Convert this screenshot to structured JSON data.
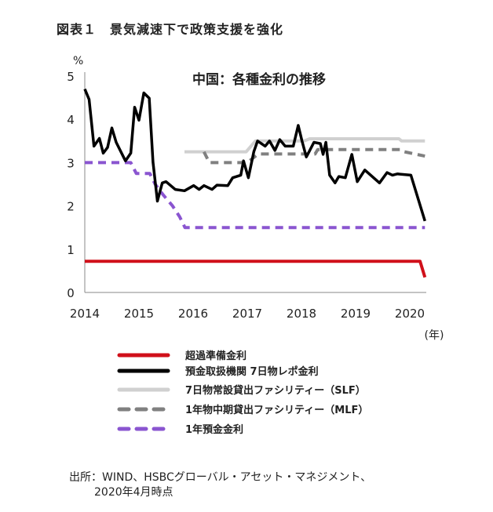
{
  "figure_title": "図表１　景気減速下で政策支援を強化",
  "source_line1": "出所：WIND、HSBCグローバル・アセット・マネジメント、",
  "source_line2": "2020年4月時点",
  "chart_data": {
    "type": "line",
    "title": "中国：各種金利の推移",
    "ylabel": "%",
    "xlabel": "(年)",
    "xlim": [
      2014,
      2020.3
    ],
    "ylim": [
      0,
      5
    ],
    "xticks": [
      "2014",
      "2015",
      "2016",
      "2017",
      "2018",
      "2019",
      "2020"
    ],
    "yticks": [
      "0",
      "1",
      "2",
      "3",
      "4",
      "5"
    ],
    "grid": false,
    "legend_position": "bottom",
    "series": [
      {
        "name": "超過準備金利",
        "color": "#d0101a",
        "style": "solid",
        "x": [
          2014.0,
          2020.19,
          2020.28
        ],
        "y": [
          0.72,
          0.72,
          0.35
        ]
      },
      {
        "name": "預金取扱機関 7日物レポ金利",
        "color": "#000000",
        "style": "solid",
        "x": [
          2014.0,
          2014.08,
          2014.17,
          2014.27,
          2014.34,
          2014.42,
          2014.5,
          2014.58,
          2014.75,
          2014.85,
          2014.92,
          2015.0,
          2015.09,
          2015.19,
          2015.26,
          2015.34,
          2015.43,
          2015.5,
          2015.67,
          2015.84,
          2016.01,
          2016.11,
          2016.2,
          2016.35,
          2016.44,
          2016.64,
          2016.73,
          2016.88,
          2016.93,
          2017.02,
          2017.12,
          2017.19,
          2017.33,
          2017.41,
          2017.51,
          2017.6,
          2017.7,
          2017.85,
          2017.94,
          2018.01,
          2018.09,
          2018.14,
          2018.23,
          2018.35,
          2018.4,
          2018.45,
          2018.52,
          2018.62,
          2018.69,
          2018.81,
          2018.93,
          2019.03,
          2019.17,
          2019.44,
          2019.58,
          2019.68,
          2019.77,
          2020.02,
          2020.28
        ],
        "y": [
          4.7,
          4.46,
          3.38,
          3.56,
          3.22,
          3.35,
          3.8,
          3.47,
          3.04,
          3.22,
          4.28,
          3.98,
          4.61,
          4.49,
          3.01,
          2.11,
          2.53,
          2.56,
          2.38,
          2.35,
          2.47,
          2.38,
          2.47,
          2.38,
          2.48,
          2.47,
          2.65,
          2.71,
          3.04,
          2.65,
          3.25,
          3.5,
          3.38,
          3.5,
          3.28,
          3.53,
          3.38,
          3.38,
          3.86,
          3.5,
          3.13,
          3.25,
          3.47,
          3.44,
          3.19,
          3.47,
          2.71,
          2.53,
          2.68,
          2.65,
          3.19,
          2.56,
          2.83,
          2.53,
          2.77,
          2.71,
          2.74,
          2.71,
          1.65
        ]
      },
      {
        "name": "7日物常設貸出ファシリティー（SLF）",
        "color": "#d0d0d0",
        "style": "solid",
        "x": [
          2015.84,
          2016.98,
          2017.15,
          2018.05,
          2018.15,
          2019.8,
          2019.85,
          2020.28
        ],
        "y": [
          3.25,
          3.25,
          3.5,
          3.5,
          3.55,
          3.55,
          3.5,
          3.5
        ]
      },
      {
        "name": "1年物中期貸出ファシリティー（MLF）",
        "color": "#808080",
        "style": "dashed",
        "x": [
          2016.2,
          2016.3,
          2017.0,
          2017.2,
          2018.25,
          2018.3,
          2019.85,
          2019.9,
          2020.28
        ],
        "y": [
          3.25,
          3.0,
          3.0,
          3.2,
          3.2,
          3.3,
          3.3,
          3.25,
          3.15
        ]
      },
      {
        "name": "1年預金金利",
        "color": "#8a55d0",
        "style": "dashed",
        "x": [
          2014.0,
          2014.85,
          2014.95,
          2015.2,
          2015.3,
          2015.45,
          2015.62,
          2015.75,
          2015.85,
          2020.28
        ],
        "y": [
          3.0,
          3.0,
          2.75,
          2.75,
          2.5,
          2.25,
          2.0,
          1.75,
          1.5,
          1.5
        ]
      }
    ]
  }
}
